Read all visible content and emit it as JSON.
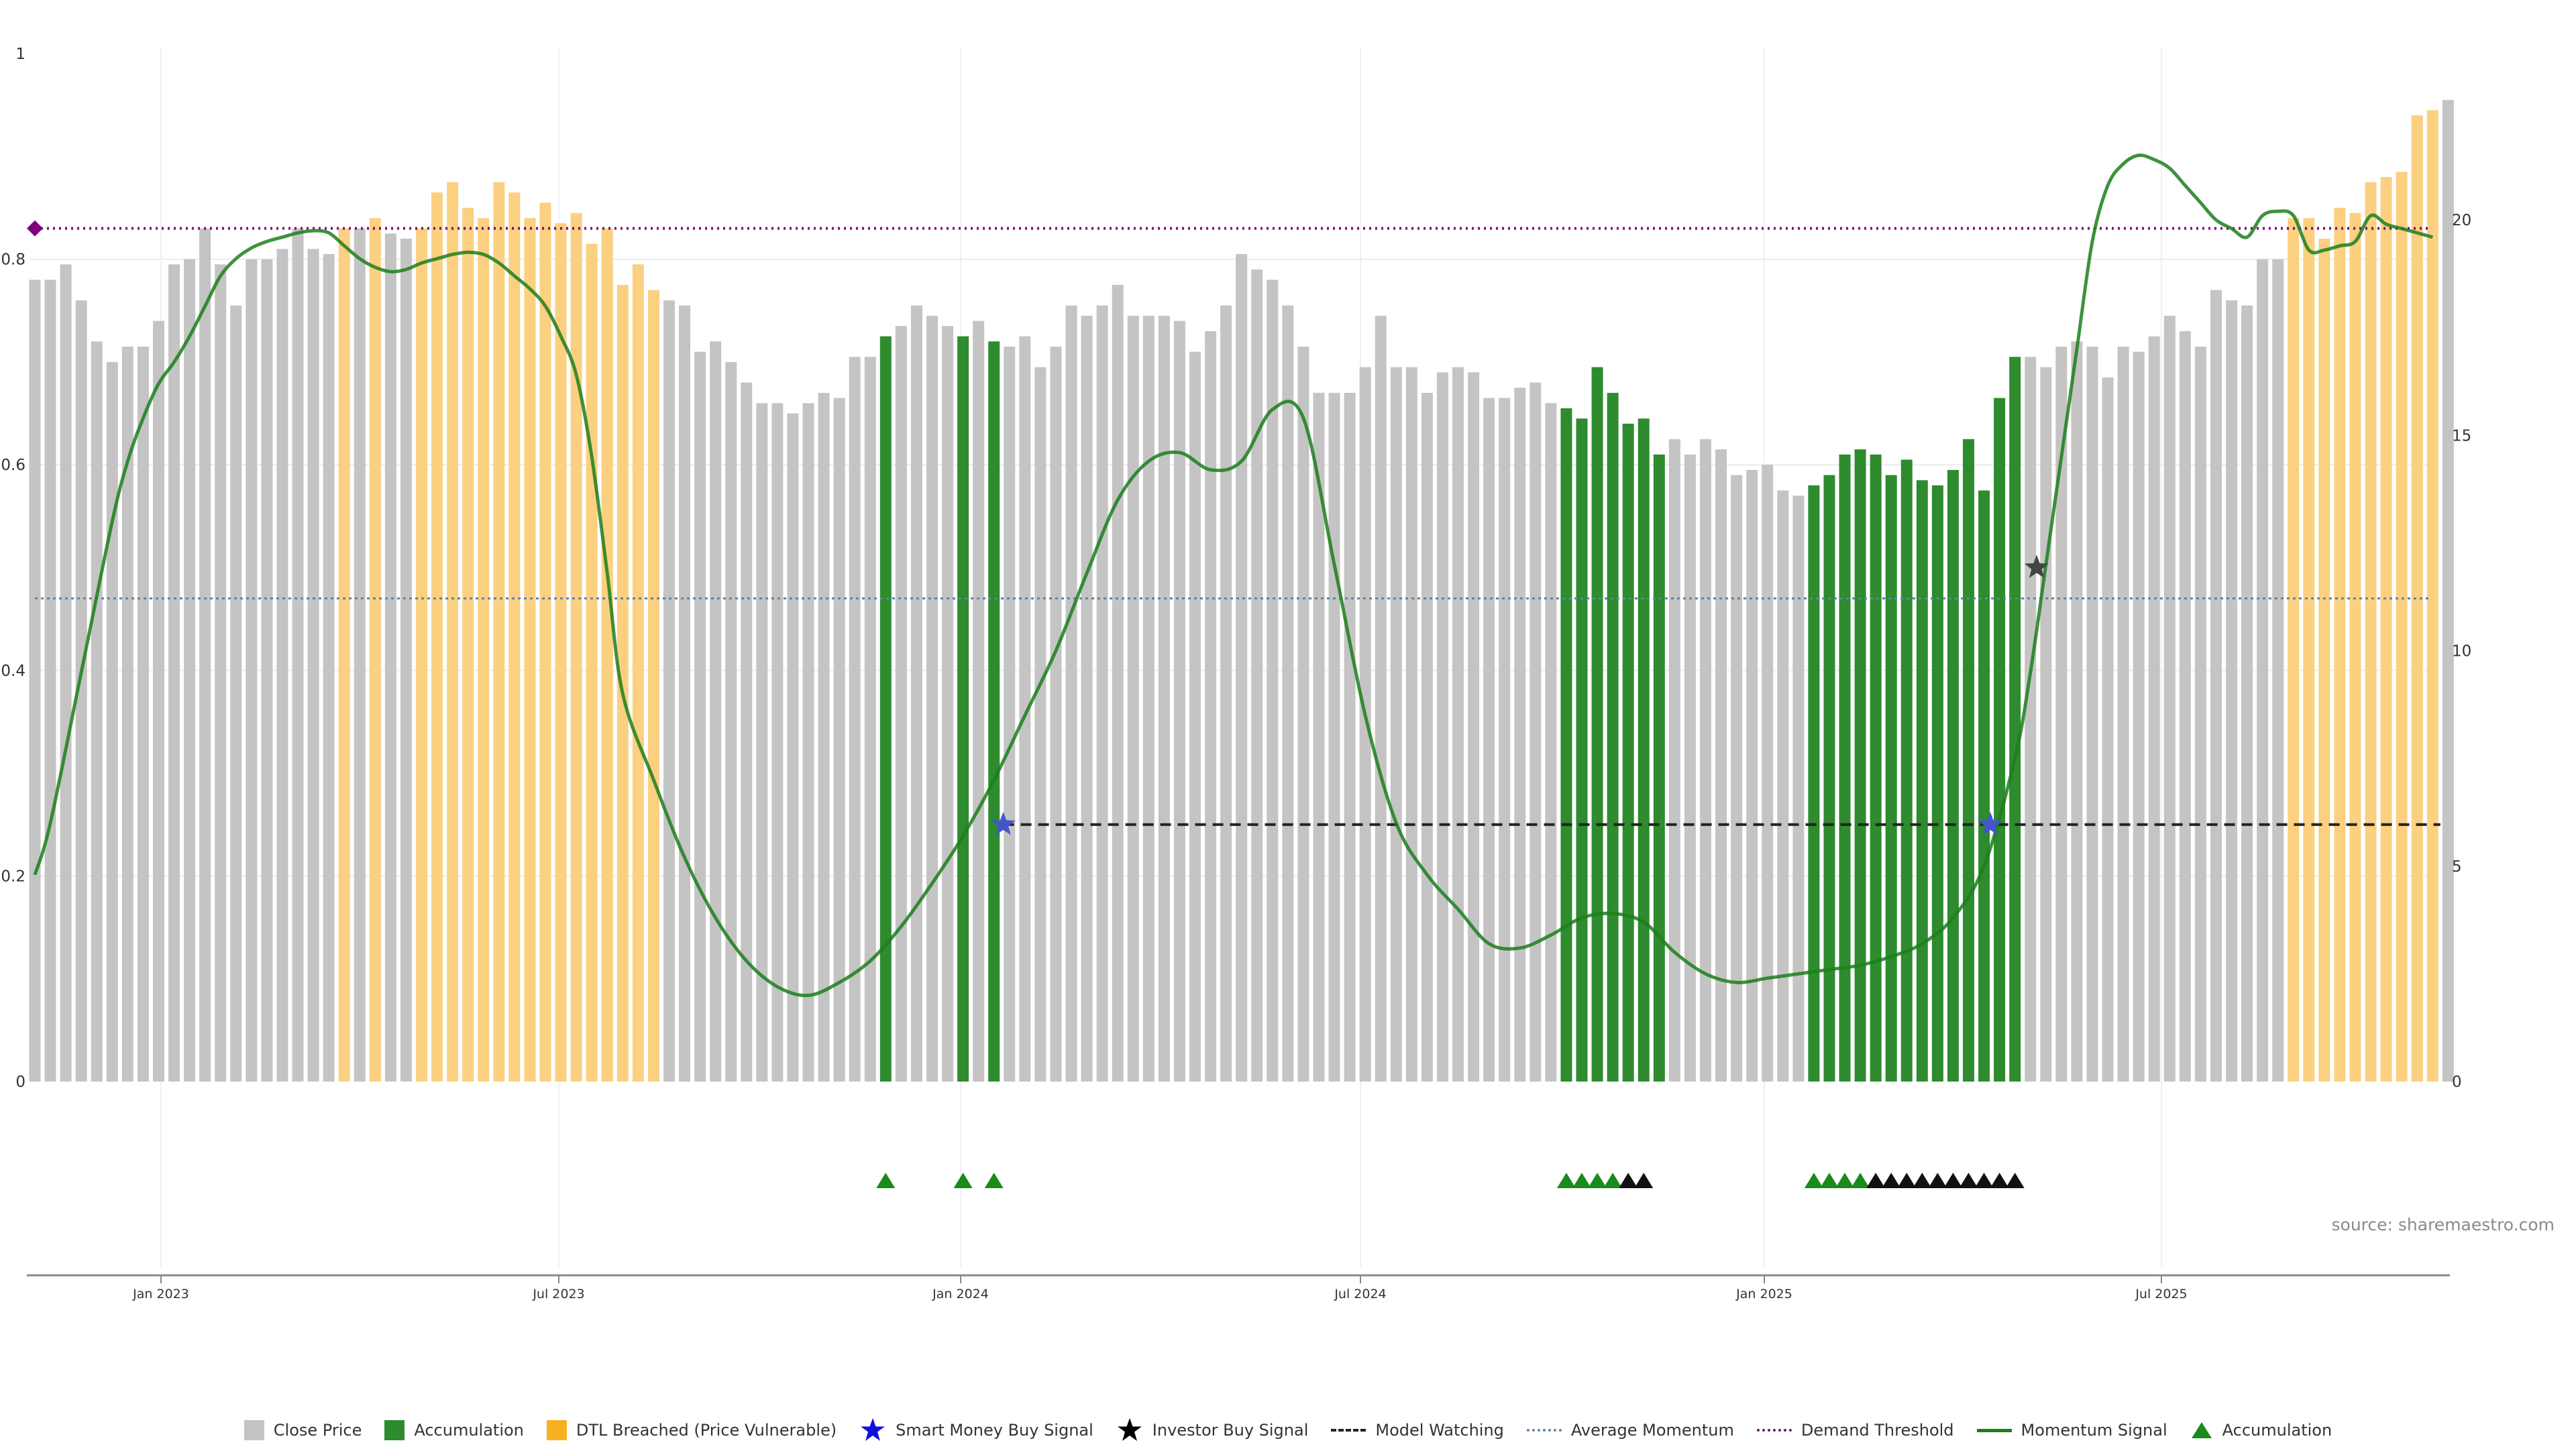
{
  "chart_data": {
    "type": "bar",
    "title": "",
    "source": "source: sharemaestro.com",
    "left_axis": {
      "ticks": [
        "0",
        "0.2",
        "0.4",
        "0.6",
        "0.8",
        "1"
      ],
      "ylim": [
        0,
        1
      ]
    },
    "right_axis": {
      "ticks": [
        "0",
        "5",
        "10",
        "15",
        "20"
      ],
      "ylim": [
        0,
        23
      ]
    },
    "x_axis": {
      "ticks": [
        "Jan 2023",
        "Jul 2023",
        "Jan 2024",
        "Jul 2024",
        "Jan 2025",
        "Jul 2025"
      ]
    },
    "colors": {
      "close": "#c4c4c4",
      "accumulation": "#2e8b2e",
      "dtl": "#fbd081",
      "momentum": "#1b7f1b",
      "avg_momentum": "#5b86a8",
      "demand": "#800080",
      "watching": "#222222",
      "smart_money": "#4455cc",
      "investor": "#444444",
      "triangle_green": "#1a8a1a",
      "triangle_black": "#111111"
    },
    "close_price": {
      "name": "Close Price",
      "values": [
        0.78,
        0.78,
        0.795,
        0.76,
        0.72,
        0.7,
        0.715,
        0.715,
        0.74,
        0.795,
        0.8,
        0.83,
        0.795,
        0.755,
        0.8,
        0.8,
        0.81,
        0.83,
        0.81,
        0.805,
        0.83,
        0.83,
        0.84,
        0.825,
        0.82,
        0.83,
        0.865,
        0.875,
        0.85,
        0.84,
        0.875,
        0.865,
        0.84,
        0.855,
        0.835,
        0.845,
        0.815,
        0.83,
        0.775,
        0.795,
        0.77,
        0.76,
        0.755,
        0.71,
        0.72,
        0.7,
        0.68,
        0.66,
        0.66,
        0.65,
        0.66,
        0.67,
        0.665,
        0.705,
        0.705,
        0.725,
        0.735,
        0.755,
        0.745,
        0.735,
        0.725,
        0.74,
        0.72,
        0.715,
        0.725,
        0.695,
        0.715,
        0.755,
        0.745,
        0.755,
        0.775,
        0.745,
        0.745,
        0.745,
        0.74,
        0.71,
        0.73,
        0.755,
        0.805,
        0.79,
        0.78,
        0.755,
        0.715,
        0.67,
        0.67,
        0.67,
        0.695,
        0.745,
        0.695,
        0.695,
        0.67,
        0.69,
        0.695,
        0.69,
        0.665,
        0.665,
        0.675,
        0.68,
        0.66,
        0.655,
        0.645,
        0.695,
        0.67,
        0.64,
        0.645,
        0.61,
        0.625,
        0.61,
        0.625,
        0.615,
        0.59,
        0.595,
        0.6,
        0.575,
        0.57,
        0.58,
        0.59,
        0.61,
        0.615,
        0.61,
        0.59,
        0.605,
        0.585,
        0.58,
        0.595,
        0.625,
        0.575,
        0.665,
        0.705,
        0.705,
        0.695,
        0.715,
        0.72,
        0.715,
        0.685,
        0.715,
        0.71,
        0.725,
        0.745,
        0.73,
        0.715,
        0.77,
        0.76,
        0.755,
        0.8,
        0.8,
        0.84,
        0.84,
        0.82,
        0.85,
        0.845,
        0.875,
        0.88,
        0.885,
        0.94,
        0.945,
        0.955
      ]
    },
    "accumulation_bars": {
      "name": "Accumulation",
      "indices": [
        55,
        60,
        62,
        99,
        100,
        101,
        102,
        103,
        104,
        105,
        115,
        116,
        117,
        118,
        119,
        120,
        121,
        122,
        123,
        124,
        125,
        126,
        127,
        128
      ]
    },
    "dtl_bars": {
      "name": "DTL Breached (Price Vulnerable)",
      "indices": [
        20,
        22,
        25,
        26,
        27,
        28,
        29,
        30,
        31,
        32,
        33,
        34,
        35,
        36,
        37,
        38,
        39,
        40,
        146,
        147,
        148,
        149,
        150,
        151,
        152,
        153,
        154,
        155
      ]
    },
    "momentum_signal": {
      "name": "Momentum Signal",
      "keypoints": [
        [
          0,
          4.8
        ],
        [
          1,
          6.0
        ],
        [
          3,
          9.5
        ],
        [
          5,
          13.0
        ],
        [
          6,
          14.4
        ],
        [
          7,
          15.4
        ],
        [
          8,
          16.2
        ],
        [
          9,
          16.7
        ],
        [
          10,
          17.3
        ],
        [
          11,
          18.0
        ],
        [
          12,
          18.7
        ],
        [
          13,
          19.1
        ],
        [
          14,
          19.35
        ],
        [
          15,
          19.5
        ],
        [
          16,
          19.6
        ],
        [
          17,
          19.7
        ],
        [
          18,
          19.75
        ],
        [
          19,
          19.7
        ],
        [
          20,
          19.4
        ],
        [
          21,
          19.1
        ],
        [
          22,
          18.9
        ],
        [
          23,
          18.8
        ],
        [
          24,
          18.85
        ],
        [
          25,
          19.0
        ],
        [
          26,
          19.1
        ],
        [
          27,
          19.2
        ],
        [
          28,
          19.25
        ],
        [
          29,
          19.2
        ],
        [
          30,
          19.0
        ],
        [
          31,
          18.7
        ],
        [
          32,
          18.4
        ],
        [
          33,
          18.0
        ],
        [
          34,
          17.3
        ],
        [
          35,
          16.4
        ],
        [
          36,
          14.5
        ],
        [
          37,
          11.8
        ],
        [
          38,
          9.0
        ],
        [
          40,
          7.0
        ],
        [
          42,
          5.2
        ],
        [
          44,
          3.8
        ],
        [
          46,
          2.8
        ],
        [
          48,
          2.2
        ],
        [
          50,
          2.0
        ],
        [
          52,
          2.3
        ],
        [
          54,
          2.8
        ],
        [
          56,
          3.6
        ],
        [
          58,
          4.6
        ],
        [
          60,
          5.7
        ],
        [
          62,
          7.0
        ],
        [
          64,
          8.5
        ],
        [
          66,
          10.0
        ],
        [
          68,
          11.8
        ],
        [
          70,
          13.5
        ],
        [
          72,
          14.4
        ],
        [
          74,
          14.6
        ],
        [
          76,
          14.2
        ],
        [
          78,
          14.4
        ],
        [
          80,
          15.6
        ],
        [
          82,
          15.4
        ],
        [
          84,
          12.0
        ],
        [
          86,
          8.5
        ],
        [
          88,
          6.0
        ],
        [
          90,
          4.8
        ],
        [
          92,
          4.0
        ],
        [
          94,
          3.2
        ],
        [
          96,
          3.1
        ],
        [
          98,
          3.4
        ],
        [
          100,
          3.8
        ],
        [
          102,
          3.9
        ],
        [
          104,
          3.7
        ],
        [
          106,
          3.0
        ],
        [
          108,
          2.5
        ],
        [
          110,
          2.3
        ],
        [
          112,
          2.4
        ],
        [
          114,
          2.5
        ],
        [
          116,
          2.6
        ],
        [
          118,
          2.7
        ],
        [
          120,
          2.9
        ],
        [
          122,
          3.2
        ],
        [
          124,
          3.8
        ],
        [
          126,
          5.0
        ],
        [
          128,
          7.5
        ],
        [
          129,
          9.5
        ],
        [
          130,
          12.0
        ],
        [
          131,
          14.5
        ],
        [
          132,
          17.0
        ],
        [
          133,
          19.5
        ],
        [
          134,
          20.8
        ],
        [
          135,
          21.3
        ],
        [
          136,
          21.5
        ],
        [
          137,
          21.4
        ],
        [
          138,
          21.2
        ],
        [
          139,
          20.8
        ],
        [
          140,
          20.4
        ],
        [
          141,
          20.0
        ],
        [
          142,
          19.8
        ],
        [
          143,
          19.6
        ],
        [
          144,
          20.1
        ],
        [
          145,
          20.2
        ],
        [
          146,
          20.1
        ],
        [
          147,
          19.3
        ],
        [
          148,
          19.3
        ],
        [
          149,
          19.4
        ],
        [
          150,
          19.5
        ],
        [
          151,
          20.1
        ],
        [
          152,
          19.9
        ],
        [
          153,
          19.8
        ],
        [
          154,
          19.7
        ],
        [
          155,
          19.6
        ]
      ]
    },
    "avg_momentum": {
      "name": "Average Momentum",
      "value": 0.47
    },
    "demand_threshold": {
      "name": "Demand Threshold",
      "value": 0.83
    },
    "model_watching": {
      "name": "Model Watching",
      "value": 0.25,
      "segments": [
        [
          62.6,
          155.5
        ]
      ]
    },
    "smart_money_signals": {
      "name": "Smart Money Buy Signal",
      "points": [
        [
          62.6,
          0.25
        ],
        [
          126.4,
          0.25
        ]
      ]
    },
    "investor_signals": {
      "name": "Investor Buy Signal",
      "points": [
        [
          129.4,
          0.5
        ]
      ]
    },
    "accumulation_triangles": {
      "name": "Accumulation",
      "green": [
        55,
        60,
        62,
        99,
        100,
        101,
        102,
        115,
        116,
        117,
        118
      ],
      "black": [
        103,
        104,
        119,
        120,
        121,
        122,
        123,
        124,
        125,
        126,
        127,
        128
      ]
    },
    "legend": [
      {
        "label": "Close Price"
      },
      {
        "label": "Accumulation"
      },
      {
        "label": "DTL Breached (Price Vulnerable)"
      },
      {
        "label": "Smart Money Buy Signal"
      },
      {
        "label": "Investor Buy Signal"
      },
      {
        "label": "Model Watching"
      },
      {
        "label": "Average Momentum"
      },
      {
        "label": "Demand Threshold"
      },
      {
        "label": "Momentum Signal"
      },
      {
        "label": "Accumulation"
      }
    ]
  }
}
